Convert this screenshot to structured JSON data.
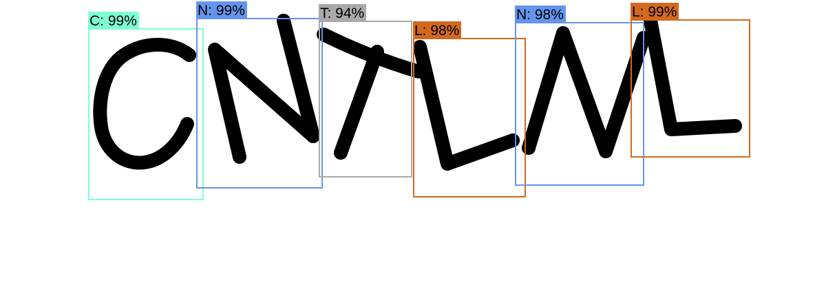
{
  "detections": [
    {
      "char": "C",
      "label": "C: 99%",
      "confidence": 0.99,
      "color": "#7FFFD4"
    },
    {
      "char": "N",
      "label": "N: 99%",
      "confidence": 0.99,
      "color": "#6495ED"
    },
    {
      "char": "T",
      "label": "T: 94%",
      "confidence": 0.94,
      "color": "#A9A9A9"
    },
    {
      "char": "L",
      "label": "L: 98%",
      "confidence": 0.98,
      "color": "#D2691E"
    },
    {
      "char": "N",
      "label": "N: 98%",
      "confidence": 0.98,
      "color": "#6495ED"
    },
    {
      "char": "L",
      "label": "L: 99%",
      "confidence": 0.99,
      "color": "#D2691E"
    }
  ],
  "stroke_color": "#000000"
}
